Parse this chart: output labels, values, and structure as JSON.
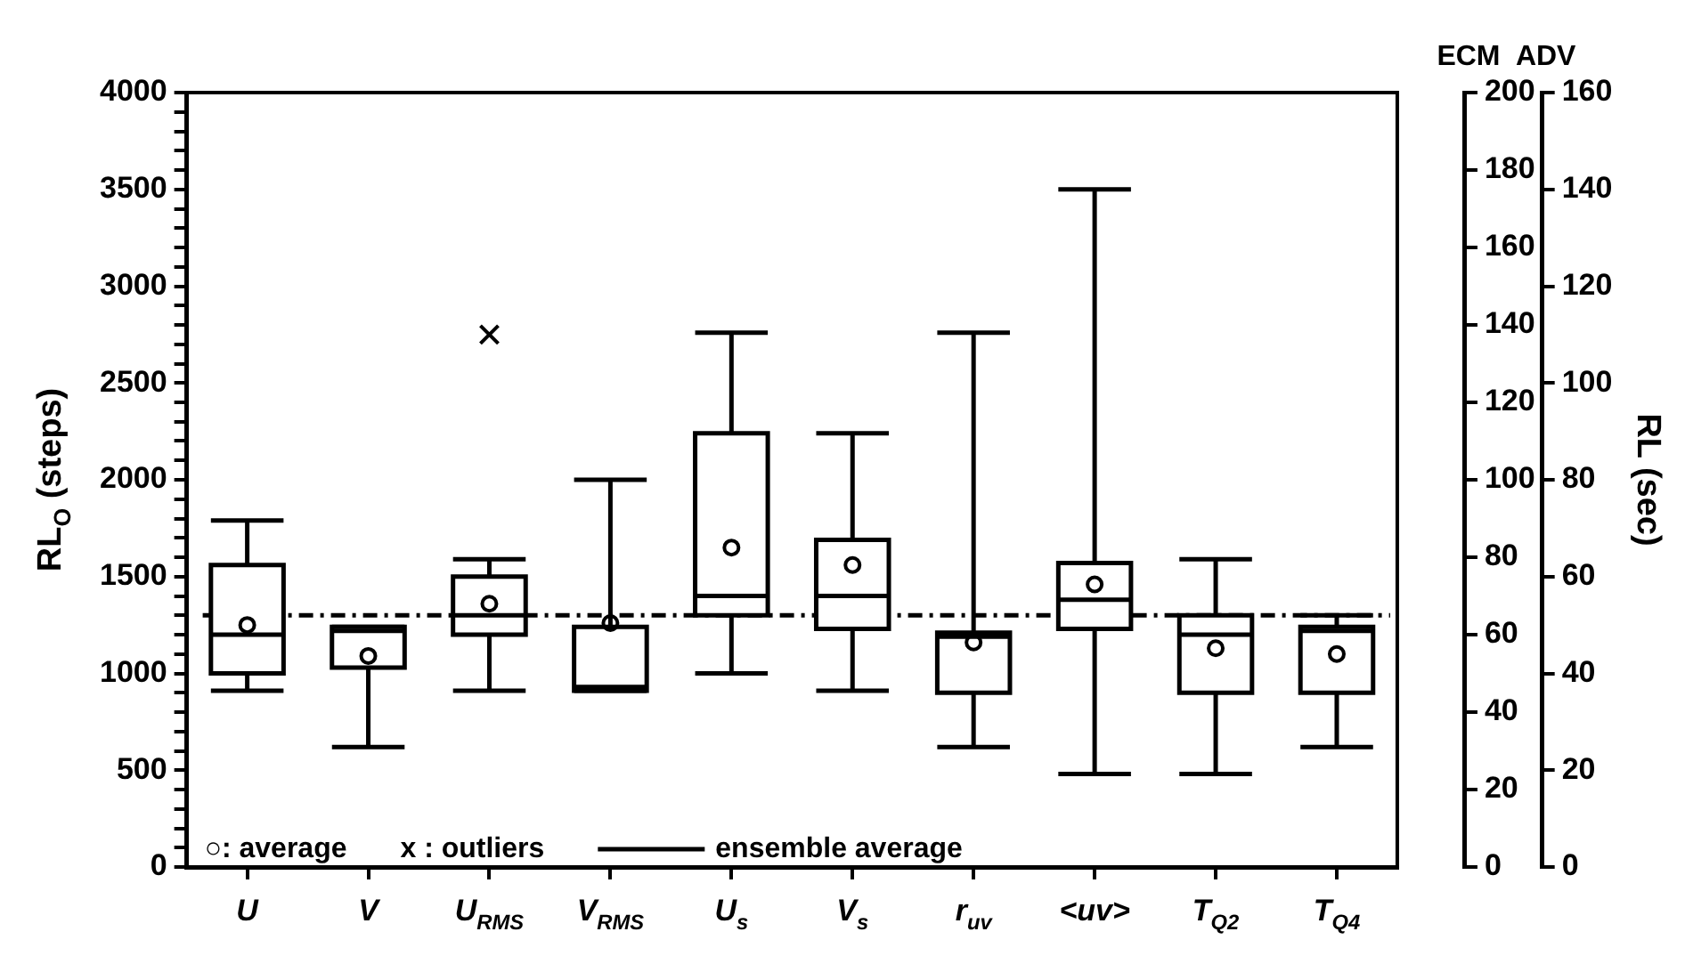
{
  "chart_data": {
    "type": "box",
    "categories": [
      "U",
      "V",
      "U$_{RMS}$",
      "V$_{RMS}$",
      "U$_{s}$",
      "V$_{s}$",
      "r$_{uv}$",
      "<uv>",
      "T$_{Q2}$",
      "T$_{Q4}$"
    ],
    "boxes": [
      {
        "low": 910,
        "q1": 1000,
        "median": 1200,
        "q3": 1560,
        "high": 1790,
        "mean": 1250
      },
      {
        "low": 620,
        "q1": 1030,
        "median": 1220,
        "q3": 1240,
        "high": 1240,
        "mean": 1090
      },
      {
        "low": 910,
        "q1": 1200,
        "median": 1300,
        "q3": 1500,
        "high": 1590,
        "mean": 1360,
        "outliers": [
          2750
        ]
      },
      {
        "low": 910,
        "q1": 910,
        "median": 930,
        "q3": 1240,
        "high": 2000,
        "mean": 1260
      },
      {
        "low": 1000,
        "q1": 1300,
        "median": 1400,
        "q3": 2240,
        "high": 2760,
        "mean": 1650
      },
      {
        "low": 910,
        "q1": 1230,
        "median": 1400,
        "q3": 1690,
        "high": 2240,
        "mean": 1560
      },
      {
        "low": 620,
        "q1": 900,
        "median": 1190,
        "q3": 1210,
        "high": 2760,
        "mean": 1160
      },
      {
        "low": 480,
        "q1": 1230,
        "median": 1380,
        "q3": 1570,
        "high": 3500,
        "mean": 1460
      },
      {
        "low": 480,
        "q1": 900,
        "median": 1200,
        "q3": 1300,
        "high": 1590,
        "mean": 1130
      },
      {
        "low": 620,
        "q1": 900,
        "median": 1220,
        "q3": 1240,
        "high": 1300,
        "mean": 1100
      }
    ],
    "ylabel": "RL$_{O}$ (steps)",
    "y3label": "RL (sec)",
    "ylim": [
      0,
      4000
    ],
    "yticks": [
      0,
      {
        "value": 100,
        "label": null
      },
      {
        "value": 200,
        "label": null
      },
      {
        "value": 300,
        "label": null
      },
      {
        "value": 400,
        "label": null
      },
      500,
      {
        "value": 600,
        "label": null
      },
      {
        "value": 700,
        "label": null
      },
      {
        "value": 800,
        "label": null
      },
      {
        "value": 900,
        "label": null
      },
      1000,
      {
        "value": 1100,
        "label": null
      },
      {
        "value": 1200,
        "label": null
      },
      {
        "value": 1300,
        "label": null
      },
      {
        "value": 1400,
        "label": null
      },
      1500,
      {
        "value": 1600,
        "label": null
      },
      {
        "value": 1700,
        "label": null
      },
      {
        "value": 1800,
        "label": null
      },
      {
        "value": 1900,
        "label": null
      },
      2000,
      {
        "value": 2100,
        "label": null
      },
      {
        "value": 2200,
        "label": null
      },
      {
        "value": 2300,
        "label": null
      },
      {
        "value": 2400,
        "label": null
      },
      2500,
      {
        "value": 2600,
        "label": null
      },
      {
        "value": 2700,
        "label": null
      },
      {
        "value": 2800,
        "label": null
      },
      {
        "value": 2900,
        "label": null
      },
      3000,
      {
        "value": 3100,
        "label": null
      },
      {
        "value": 3200,
        "label": null
      },
      {
        "value": 3300,
        "label": null
      },
      {
        "value": 3400,
        "label": null
      },
      3500,
      {
        "value": 3600,
        "label": null
      },
      {
        "value": 3700,
        "label": null
      },
      {
        "value": 3800,
        "label": null
      },
      {
        "value": 3900,
        "label": null
      },
      4000
    ],
    "y2lim": [
      0,
      200
    ],
    "y2ticks": [
      0,
      20,
      40,
      60,
      80,
      100,
      120,
      140,
      160,
      180,
      200
    ],
    "y3lim": [
      0,
      160
    ],
    "y3ticks": [
      0,
      20,
      40,
      60,
      80,
      100,
      120,
      140,
      160
    ],
    "ref_lines": [
      {
        "axis": "y",
        "value": 1300,
        "label": "ensemble average",
        "line_style": "dashdot"
      }
    ],
    "annotations": [
      "ECM",
      "ADV",
      "○: average",
      "x : outliers"
    ]
  }
}
